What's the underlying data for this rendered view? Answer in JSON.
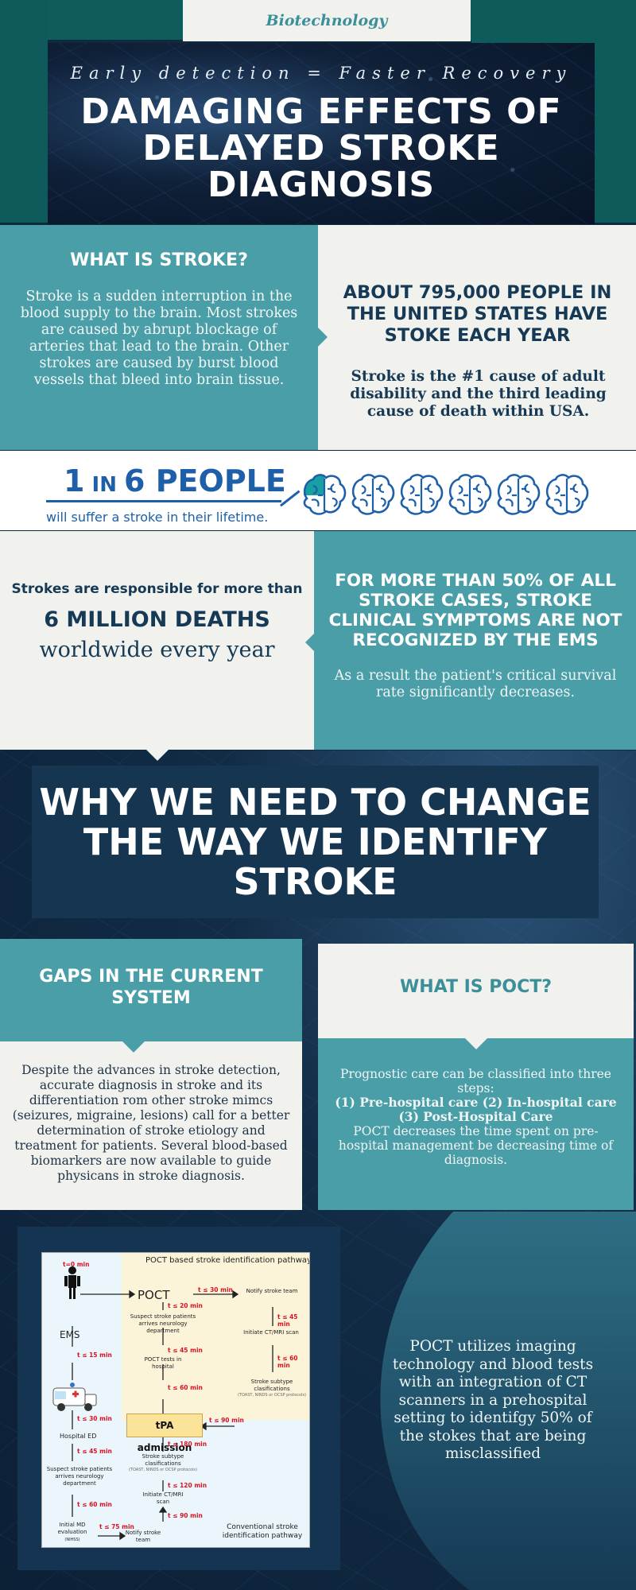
{
  "header": {
    "category": "Biotechnology",
    "tagline": "Early detection = Faster Recovery",
    "title": "DAMAGING EFFECTS OF DELAYED STROKE DIAGNOSIS"
  },
  "what_is_stroke": {
    "heading": "WHAT IS STROKE?",
    "body": "Stroke is a sudden interruption in the blood supply to the brain. Most strokes are caused by abrupt blockage of arteries that lead to the brain. Other strokes are caused by burst blood vessels that bleed into brain tissue."
  },
  "us_stats": {
    "heading": "ABOUT 795,000 PEOPLE IN THE UNITED STATES HAVE STOKE EACH YEAR",
    "body": "Stroke is the #1 cause of adult disability and the third leading cause of death within USA."
  },
  "one_in_six": {
    "ratio_num": "1",
    "ratio_in": "IN",
    "ratio_den": "6",
    "ratio_word": "PEOPLE",
    "caption": "will suffer a stroke in their lifetime.",
    "brain_icon_count": 6,
    "highlight_fraction": 0.1667,
    "accent_color": "#1d5fa8",
    "icon_color": "#1d5fa8"
  },
  "deaths": {
    "lead": "Strokes are responsible for more than",
    "figure": "6 MILLION DEATHS",
    "tail": "worldwide every year"
  },
  "ems": {
    "heading": "FOR MORE THAN 50% OF ALL STROKE CASES, STROKE CLINICAL SYMPTOMS ARE NOT RECOGNIZED BY THE EMS",
    "body": "As a result the patient's critical survival rate significantly decreases."
  },
  "why": {
    "title": "WHY WE NEED TO CHANGE THE WAY WE IDENTIFY STROKE"
  },
  "gaps": {
    "heading": "GAPS IN THE CURRENT SYSTEM",
    "body": "Despite the advances in stroke detection, accurate diagnosis in stroke and its differentiation rom other stroke mimcs (seizures, migraine, lesions) call for a better determination of stroke etiology and treatment for patients. Several blood-based biomarkers are now available to guide physicans in stroke diagnosis."
  },
  "poct": {
    "heading": "WHAT IS POCT?",
    "intro": "Prognostic care can be classified into three steps:",
    "steps": "(1) Pre-hospital care (2) In-hospital care (3) Post-Hospital Care",
    "body": "POCT decreases the time spent on pre-hospital management be decreasing time of diagnosis."
  },
  "diagram": {
    "title": "POCT based stroke identification pathway",
    "footer": "Conventional stroke identification pathway",
    "left": {
      "t0": "t=0 min",
      "ems": "EMS",
      "t1": "t ≤ 15 min",
      "t2": "t ≤ 30 min",
      "hospital": "Hospital ED",
      "t3": "t ≤ 45 min",
      "suspect": "Suspect stroke patients arrives neurology department",
      "t4": "t ≤ 60 min",
      "initial": "Initial MD evaluation",
      "initial_small": "(NIHSS)",
      "t5": "t ≤ 75 min",
      "notify": "Notify stroke team"
    },
    "mid": {
      "poct": "POCT",
      "t1": "t ≤ 20 min",
      "suspect": "Suspect stroke patients arrives neurology department",
      "t2": "t ≤ 45 min",
      "tests": "POCT tests in hospital",
      "t3": "t ≤ 60 min",
      "tpa": "tPA admission",
      "t4": "t ≤ 180 min",
      "subtype": "Stroke subtype clasifications",
      "subtype_small": "(TOAST, NINDS or OCSP protocols)",
      "t5": "t ≤ 120 min",
      "initiate": "Initiate CT/MRI scan",
      "t6": "t ≤ 90 min"
    },
    "right": {
      "t0": "t ≤ 30 min",
      "notify": "Notify stroke team",
      "t1": "t ≤ 45 min",
      "initiate": "Initiate CT/MRI scan",
      "t2": "t ≤ 60 min",
      "subtype": "Stroke subtype clasifications",
      "subtype_small": "(TOAST, NINDS or OCSP protocols)",
      "t3": "t ≤ 90 min"
    }
  },
  "poct_summary": {
    "body": "POCT utilizes imaging technology and blood tests with an integration of CT scanners in a prehospital setting to identifgy 50% of the stokes that are being misclassified"
  }
}
